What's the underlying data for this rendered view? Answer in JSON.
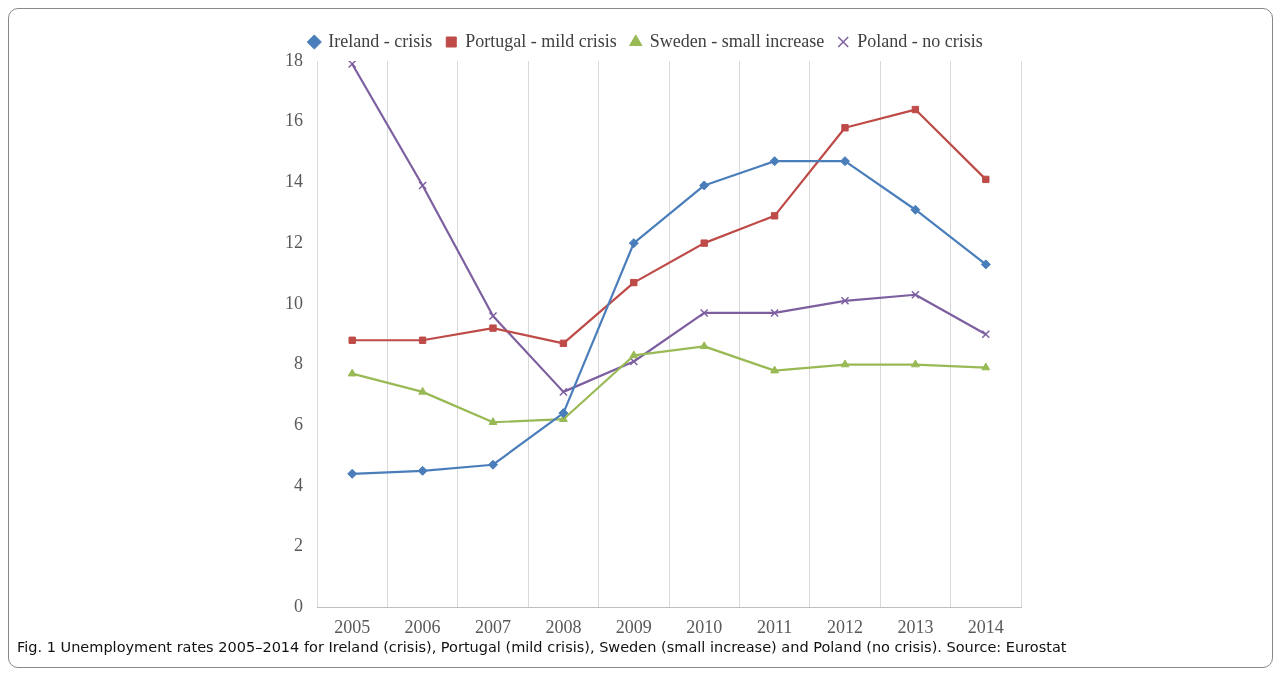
{
  "chart_data": {
    "type": "line",
    "categories": [
      "2005",
      "2006",
      "2007",
      "2008",
      "2009",
      "2010",
      "2011",
      "2012",
      "2013",
      "2014"
    ],
    "series": [
      {
        "name": "Ireland - crisis",
        "color": "#4a7ebb",
        "marker": "diamond",
        "values": [
          4.4,
          4.5,
          4.7,
          6.4,
          12.0,
          13.9,
          14.7,
          14.7,
          13.1,
          11.3
        ]
      },
      {
        "name": "Portugal - mild crisis",
        "color": "#be4b48",
        "marker": "square",
        "values": [
          8.8,
          8.8,
          9.2,
          8.7,
          10.7,
          12.0,
          12.9,
          15.8,
          16.4,
          14.1
        ]
      },
      {
        "name": "Sweden - small increase",
        "color": "#98b954",
        "marker": "triangle",
        "values": [
          7.7,
          7.1,
          6.1,
          6.2,
          8.3,
          8.6,
          7.8,
          8.0,
          8.0,
          7.9
        ]
      },
      {
        "name": "Poland - no crisis",
        "color": "#7d5fa0",
        "marker": "cross",
        "values": [
          17.9,
          13.9,
          9.6,
          7.1,
          8.1,
          9.7,
          9.7,
          10.1,
          10.3,
          9.0
        ]
      }
    ],
    "ylim": [
      0,
      18
    ],
    "yticks": [
      0,
      2,
      4,
      6,
      8,
      10,
      12,
      14,
      16,
      18
    ],
    "grid": "x",
    "legend": "top",
    "annotations": [
      "Fig. 1 Unemployment rates 2005–2014 for Ireland (crisis), Portugal (mild crisis), Sweden (small increase) and Poland (no crisis). Source: Eurostat"
    ]
  }
}
